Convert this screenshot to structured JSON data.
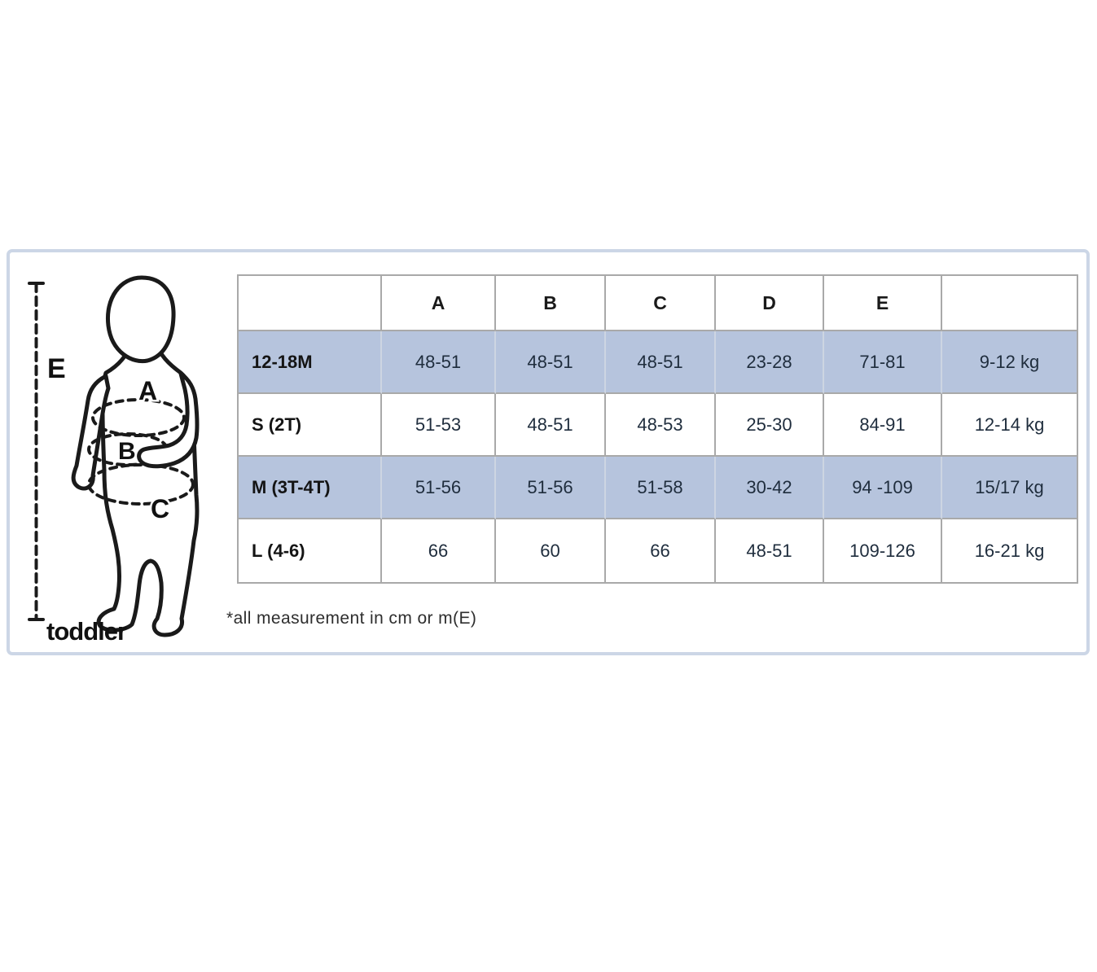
{
  "panel": {
    "footnote": "*all measurement in cm or m(E)"
  },
  "figure": {
    "caption": "toddler",
    "height_marker": "E",
    "girth_markers": {
      "chest": "A",
      "waist": "B",
      "hip": "C"
    }
  },
  "table": {
    "header": [
      "",
      "A",
      "B",
      "C",
      "D",
      "E",
      ""
    ],
    "rows": [
      {
        "size": "12-18M",
        "shaded": true,
        "values": [
          "48-51",
          "48-51",
          "48-51",
          "23-28",
          "71-81",
          "9-12 kg"
        ]
      },
      {
        "size": "S (2T)",
        "shaded": false,
        "values": [
          "51-53",
          "48-51",
          "48-53",
          "25-30",
          "84-91",
          "12-14 kg"
        ]
      },
      {
        "size": "M (3T-4T)",
        "shaded": true,
        "values": [
          "51-56",
          "51-56",
          "51-58",
          "30-42",
          "94 -109",
          "15/17 kg"
        ]
      },
      {
        "size": "L (4-6)",
        "shaded": false,
        "values": [
          "66",
          "60",
          "66",
          "48-51",
          "109-126",
          "16-21 kg"
        ]
      }
    ]
  },
  "colors": {
    "shaded_row_bg": "#b6c4dd",
    "panel_border": "#ccd6e6",
    "table_border": "#a9a9a9",
    "shaded_divider": "#cdd5e2",
    "value_text": "#1f2d3d"
  }
}
